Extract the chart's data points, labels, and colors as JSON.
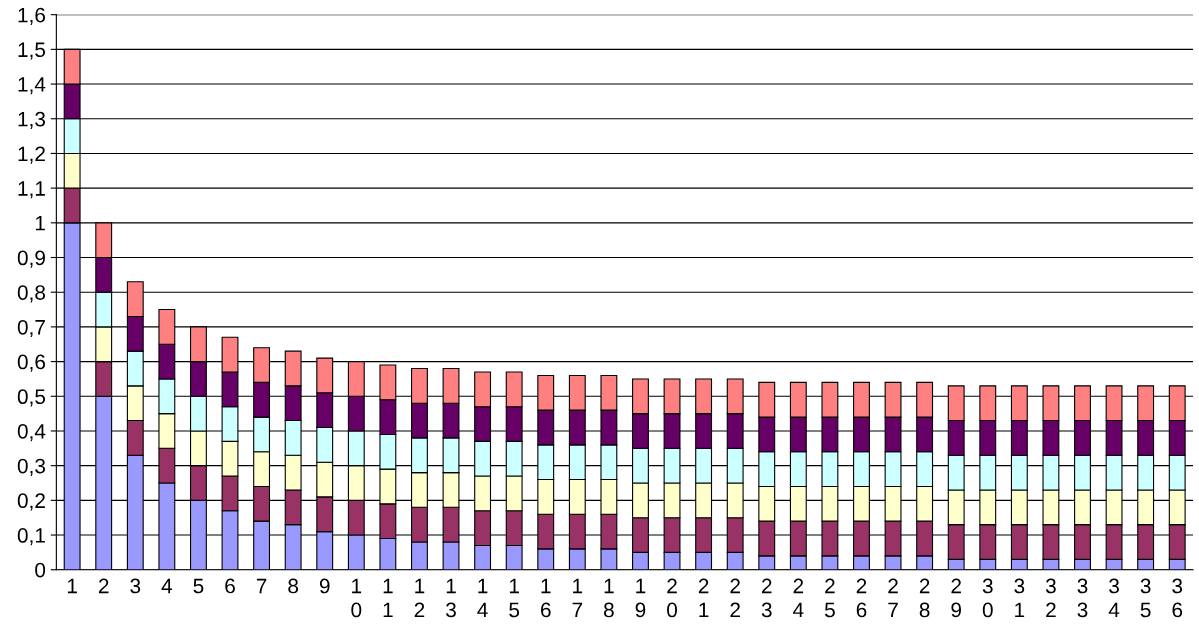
{
  "chart_data": {
    "type": "bar",
    "stacked": true,
    "categories": [
      "1",
      "2",
      "3",
      "4",
      "5",
      "6",
      "7",
      "8",
      "9",
      "10",
      "11",
      "12",
      "13",
      "14",
      "15",
      "16",
      "17",
      "18",
      "19",
      "20",
      "21",
      "22",
      "23",
      "24",
      "25",
      "26",
      "27",
      "28",
      "29",
      "30",
      "31",
      "32",
      "33",
      "34",
      "35",
      "36"
    ],
    "series": [
      {
        "color": "#9999ff",
        "values": [
          1,
          0.5,
          0.33,
          0.25,
          0.2,
          0.17,
          0.14,
          0.13,
          0.11,
          0.1,
          0.09,
          0.08,
          0.08,
          0.07,
          0.07,
          0.06,
          0.06,
          0.06,
          0.05,
          0.05,
          0.05,
          0.05,
          0.04,
          0.04,
          0.04,
          0.04,
          0.04,
          0.04,
          0.03,
          0.03,
          0.03,
          0.03,
          0.03,
          0.03,
          0.03,
          0.03
        ]
      },
      {
        "color": "#993366",
        "values": [
          0.1,
          0.1,
          0.1,
          0.1,
          0.1,
          0.1,
          0.1,
          0.1,
          0.1,
          0.1,
          0.1,
          0.1,
          0.1,
          0.1,
          0.1,
          0.1,
          0.1,
          0.1,
          0.1,
          0.1,
          0.1,
          0.1,
          0.1,
          0.1,
          0.1,
          0.1,
          0.1,
          0.1,
          0.1,
          0.1,
          0.1,
          0.1,
          0.1,
          0.1,
          0.1,
          0.1
        ]
      },
      {
        "color": "#ffffcc",
        "values": [
          0.1,
          0.1,
          0.1,
          0.1,
          0.1,
          0.1,
          0.1,
          0.1,
          0.1,
          0.1,
          0.1,
          0.1,
          0.1,
          0.1,
          0.1,
          0.1,
          0.1,
          0.1,
          0.1,
          0.1,
          0.1,
          0.1,
          0.1,
          0.1,
          0.1,
          0.1,
          0.1,
          0.1,
          0.1,
          0.1,
          0.1,
          0.1,
          0.1,
          0.1,
          0.1,
          0.1
        ]
      },
      {
        "color": "#ccffff",
        "values": [
          0.1,
          0.1,
          0.1,
          0.1,
          0.1,
          0.1,
          0.1,
          0.1,
          0.1,
          0.1,
          0.1,
          0.1,
          0.1,
          0.1,
          0.1,
          0.1,
          0.1,
          0.1,
          0.1,
          0.1,
          0.1,
          0.1,
          0.1,
          0.1,
          0.1,
          0.1,
          0.1,
          0.1,
          0.1,
          0.1,
          0.1,
          0.1,
          0.1,
          0.1,
          0.1,
          0.1
        ]
      },
      {
        "color": "#660066",
        "values": [
          0.1,
          0.1,
          0.1,
          0.1,
          0.1,
          0.1,
          0.1,
          0.1,
          0.1,
          0.1,
          0.1,
          0.1,
          0.1,
          0.1,
          0.1,
          0.1,
          0.1,
          0.1,
          0.1,
          0.1,
          0.1,
          0.1,
          0.1,
          0.1,
          0.1,
          0.1,
          0.1,
          0.1,
          0.1,
          0.1,
          0.1,
          0.1,
          0.1,
          0.1,
          0.1,
          0.1
        ]
      },
      {
        "color": "#ff8080",
        "values": [
          0.1,
          0.1,
          0.1,
          0.1,
          0.1,
          0.1,
          0.1,
          0.1,
          0.1,
          0.1,
          0.1,
          0.1,
          0.1,
          0.1,
          0.1,
          0.1,
          0.1,
          0.1,
          0.1,
          0.1,
          0.1,
          0.1,
          0.1,
          0.1,
          0.1,
          0.1,
          0.1,
          0.1,
          0.1,
          0.1,
          0.1,
          0.1,
          0.1,
          0.1,
          0.1,
          0.1
        ]
      }
    ],
    "ylim": [
      0,
      1.6
    ],
    "yticks": [
      0,
      {
        "value": 0.1,
        "label": "0,1"
      },
      {
        "value": 0.2,
        "label": "0,2"
      },
      {
        "value": 0.3,
        "label": "0,3"
      },
      {
        "value": 0.4,
        "label": "0,4"
      },
      {
        "value": 0.5,
        "label": "0,5"
      },
      {
        "value": 0.6,
        "label": "0,6"
      },
      {
        "value": 0.7,
        "label": "0,7"
      },
      {
        "value": 0.8,
        "label": "0,8"
      },
      {
        "value": 0.9,
        "label": "0,9"
      },
      1,
      {
        "value": 1.1,
        "label": "1,1"
      },
      {
        "value": 1.2,
        "label": "1,2"
      },
      {
        "value": 1.3,
        "label": "1,3"
      },
      {
        "value": 1.4,
        "label": "1,4"
      },
      {
        "value": 1.5,
        "label": "1,5"
      },
      {
        "value": 1.6,
        "label": "1,6"
      }
    ],
    "grid": "y"
  }
}
